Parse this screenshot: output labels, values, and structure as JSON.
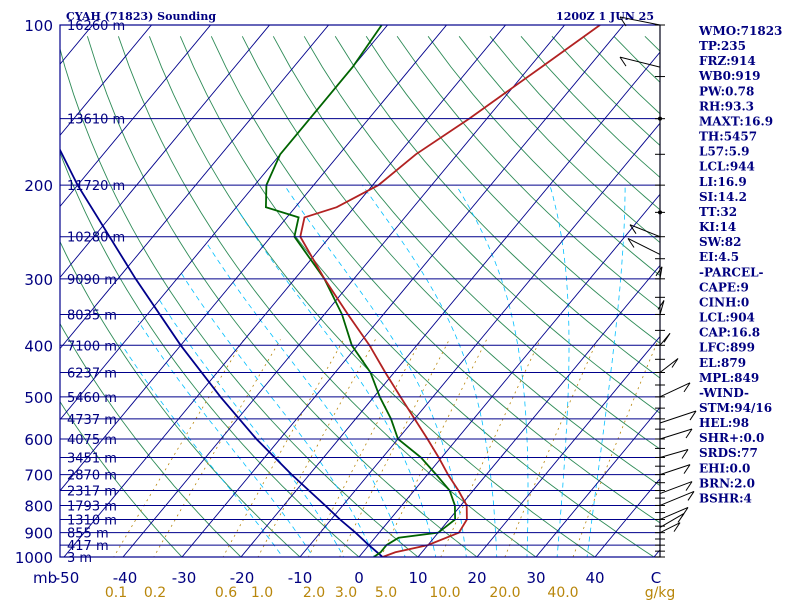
{
  "chart_data": {
    "type": "skew-t sounding",
    "title": "CYAH (71823) Sounding",
    "valid_time": "1200Z  1 JUN 25",
    "pressure_levels_mb": [
      100,
      200,
      300,
      400,
      500,
      600,
      700,
      800,
      900,
      1000
    ],
    "pressure_axis_corner_label": "mb",
    "height_labels": [
      {
        "p": 100,
        "text": "16260 m"
      },
      {
        "p": 150,
        "text": "13610 m"
      },
      {
        "p": 200,
        "text": "11720 m"
      },
      {
        "p": 250,
        "text": "10280 m"
      },
      {
        "p": 300,
        "text": "9090 m"
      },
      {
        "p": 350,
        "text": "8035 m"
      },
      {
        "p": 400,
        "text": "7100 m"
      },
      {
        "p": 450,
        "text": "6237 m"
      },
      {
        "p": 500,
        "text": "5460 m"
      },
      {
        "p": 550,
        "text": "4737 m"
      },
      {
        "p": 600,
        "text": "4075 m"
      },
      {
        "p": 650,
        "text": "3451 m"
      },
      {
        "p": 700,
        "text": "2870 m"
      },
      {
        "p": 750,
        "text": "2317 m"
      },
      {
        "p": 800,
        "text": "1793 m"
      },
      {
        "p": 850,
        "text": "1310 m"
      },
      {
        "p": 900,
        "text": "855 m"
      },
      {
        "p": 950,
        "text": "417 m"
      },
      {
        "p": 1000,
        "text": "3 m"
      }
    ],
    "temperature_ticks_c": [
      "-50",
      "-40",
      "-30",
      "-20",
      "-10",
      "0",
      "10",
      "20",
      "30",
      "40",
      "C"
    ],
    "mixing_ratio_ticks": [
      "0.1",
      "0.2",
      "0.6",
      "1.0",
      "2.0",
      "3.0",
      "5.0",
      "10.0",
      "20.0",
      "40.0",
      "g/kg"
    ],
    "temperature_profile": [
      {
        "p": 1000,
        "t": 4.0
      },
      {
        "p": 980,
        "t": 5.5
      },
      {
        "p": 950,
        "t": 10.0
      },
      {
        "p": 900,
        "t": 13.5
      },
      {
        "p": 850,
        "t": 13.0
      },
      {
        "p": 800,
        "t": 11.0
      },
      {
        "p": 750,
        "t": 7.5
      },
      {
        "p": 700,
        "t": 3.5
      },
      {
        "p": 650,
        "t": -0.5
      },
      {
        "p": 600,
        "t": -5.0
      },
      {
        "p": 550,
        "t": -10.0
      },
      {
        "p": 500,
        "t": -15.5
      },
      {
        "p": 450,
        "t": -21.5
      },
      {
        "p": 400,
        "t": -28.0
      },
      {
        "p": 350,
        "t": -36.0
      },
      {
        "p": 300,
        "t": -45.0
      },
      {
        "p": 250,
        "t": -55.0
      },
      {
        "p": 230,
        "t": -57.0
      },
      {
        "p": 220,
        "t": -53.0
      },
      {
        "p": 200,
        "t": -49.0
      },
      {
        "p": 175,
        "t": -47.0
      },
      {
        "p": 150,
        "t": -43.0
      },
      {
        "p": 120,
        "t": -38.0
      },
      {
        "p": 100,
        "t": -34.0
      }
    ],
    "dewpoint_profile": [
      {
        "p": 1000,
        "t": 2.5
      },
      {
        "p": 980,
        "t": 3.0
      },
      {
        "p": 950,
        "t": 3.0
      },
      {
        "p": 920,
        "t": 4.0
      },
      {
        "p": 900,
        "t": 10.0
      },
      {
        "p": 850,
        "t": 11.0
      },
      {
        "p": 800,
        "t": 9.0
      },
      {
        "p": 750,
        "t": 6.0
      },
      {
        "p": 700,
        "t": 1.5
      },
      {
        "p": 650,
        "t": -3.5
      },
      {
        "p": 600,
        "t": -10.0
      },
      {
        "p": 550,
        "t": -14.0
      },
      {
        "p": 500,
        "t": -19.0
      },
      {
        "p": 450,
        "t": -24.0
      },
      {
        "p": 400,
        "t": -31.0
      },
      {
        "p": 350,
        "t": -37.0
      },
      {
        "p": 300,
        "t": -45.0
      },
      {
        "p": 250,
        "t": -56.0
      },
      {
        "p": 230,
        "t": -58.0
      },
      {
        "p": 220,
        "t": -65.0
      },
      {
        "p": 200,
        "t": -68.0
      },
      {
        "p": 175,
        "t": -70.0
      },
      {
        "p": 150,
        "t": -70.0
      },
      {
        "p": 120,
        "t": -70.0
      },
      {
        "p": 100,
        "t": -71.0
      }
    ],
    "parcel_profile": [
      {
        "p": 1000,
        "t": 4.0
      },
      {
        "p": 950,
        "t": 0.0
      },
      {
        "p": 900,
        "t": -4.0
      },
      {
        "p": 850,
        "t": -8.5
      },
      {
        "p": 800,
        "t": -13.0
      },
      {
        "p": 700,
        "t": -23.0
      },
      {
        "p": 600,
        "t": -34.0
      },
      {
        "p": 500,
        "t": -46.0
      },
      {
        "p": 400,
        "t": -60.0
      },
      {
        "p": 300,
        "t": -77.0
      },
      {
        "p": 200,
        "t": -100.0
      },
      {
        "p": 150,
        "t": -115.0
      },
      {
        "p": 120,
        "t": -125.0
      }
    ],
    "colors": {
      "frame": "#00008b",
      "temperature": "#b22222",
      "dewpoint": "#006400",
      "parcel": "#00008b",
      "dry_adiabat": "#2e8b57",
      "moist_adiabat": "#00bfff",
      "mixing_ratio": "#b8860b",
      "panel_text": "#000080"
    }
  },
  "indices": [
    "WMO:71823",
    "TP:235",
    "FRZ:914",
    "WB0:919",
    "PW:0.78",
    "RH:93.3",
    "MAXT:16.9",
    "TH:5457",
    "L57:5.9",
    "LCL:944",
    "LI:16.9",
    "SI:14.2",
    "TT:32",
    "KI:14",
    "SW:82",
    "EI:4.5",
    "-PARCEL-",
    "CAPE:9",
    "CINH:0",
    "LCL:904",
    "CAP:16.8",
    "LFC:899",
    "EL:879",
    "MPL:849",
    "-WIND-",
    "STM:94/16",
    "HEL:98",
    "SHR+:0.0",
    "SRDS:77",
    "EHI:0.0",
    "BRN:2.0",
    "BSHR:4"
  ]
}
